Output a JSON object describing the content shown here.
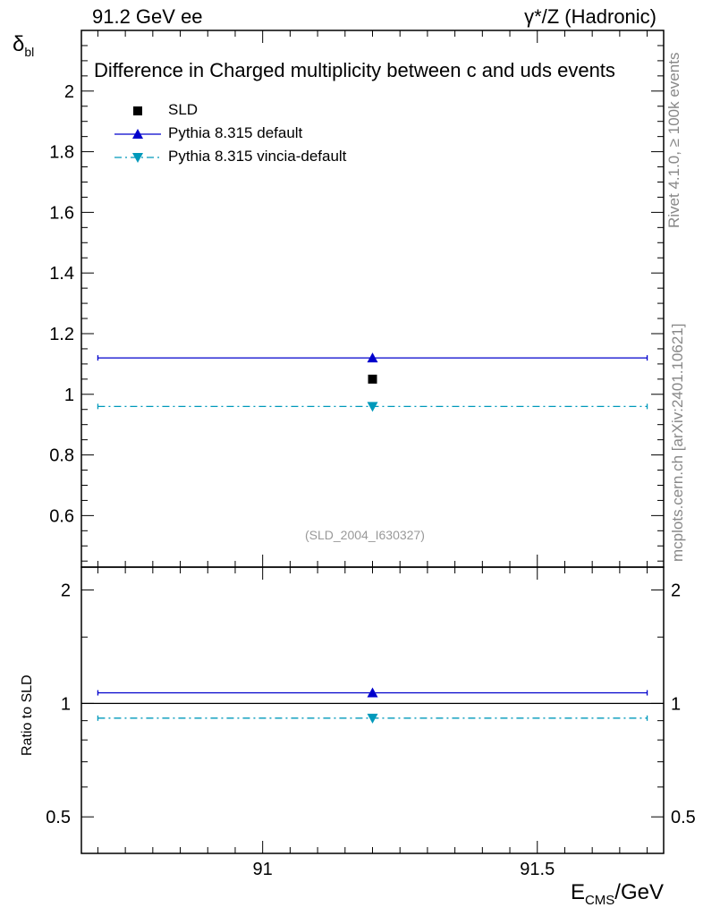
{
  "header": {
    "left": "91.2 GeV ee",
    "right": "γ*/Z (Hadronic)"
  },
  "side_labels": {
    "rivet": "Rivet 4.1.0, ≥ 100k events",
    "mcplots": "mcplots.cern.ch [arXiv:2401.10621]"
  },
  "chart_data": [
    {
      "type": "scatter",
      "panel": "main",
      "title": "Difference in Charged multiplicity between c and uds events",
      "ylabel_main": "δ",
      "ylabel_sub": "bl",
      "watermark": "(SLD_2004_I630327)",
      "xlim": [
        90.67,
        91.73
      ],
      "ylim": [
        0.43,
        2.2
      ],
      "yticks": [
        0.6,
        0.8,
        1,
        1.2,
        1.4,
        1.6,
        1.8,
        2
      ],
      "ytick_labels": [
        "0.6",
        "0.8",
        "1",
        "1.2",
        "1.4",
        "1.6",
        "1.8",
        "2"
      ],
      "legend_position": "top-left",
      "series": [
        {
          "name": "SLD",
          "marker": "square",
          "color": "#000000",
          "x": [
            91.2
          ],
          "y": [
            1.05
          ],
          "xerr": [
            0
          ]
        },
        {
          "name": "Pythia 8.315 default",
          "marker": "triangle-up",
          "color": "#0000cc",
          "line": "solid",
          "x": [
            91.2
          ],
          "y": [
            1.12
          ],
          "xerr": [
            0.5
          ]
        },
        {
          "name": "Pythia 8.315 vincia-default",
          "marker": "triangle-down",
          "color": "#0099bb",
          "line": "dashdot",
          "x": [
            91.2
          ],
          "y": [
            0.96
          ],
          "xerr": [
            0.5
          ]
        }
      ]
    },
    {
      "type": "scatter",
      "panel": "ratio",
      "ylabel": "Ratio to SLD",
      "xlabel_main": "E",
      "xlabel_sub": "CMS",
      "xlabel_rest": "/GeV",
      "xlim": [
        90.67,
        91.73
      ],
      "ylim": [
        0.4,
        2.3
      ],
      "ylog": true,
      "yticks": [
        0.5,
        1,
        2
      ],
      "ytick_labels": [
        "0.5",
        "1",
        "2"
      ],
      "xticks": [
        91,
        91.5
      ],
      "xtick_labels": [
        "91",
        "91.5"
      ],
      "reference": 1,
      "series": [
        {
          "name": "Pythia 8.315 default",
          "color": "#0000cc",
          "x": [
            91.2
          ],
          "y": [
            1.067
          ],
          "xerr": [
            0.5
          ]
        },
        {
          "name": "Pythia 8.315 vincia-default",
          "color": "#0099bb",
          "x": [
            91.2
          ],
          "y": [
            0.914
          ],
          "xerr": [
            0.5
          ]
        }
      ]
    }
  ]
}
